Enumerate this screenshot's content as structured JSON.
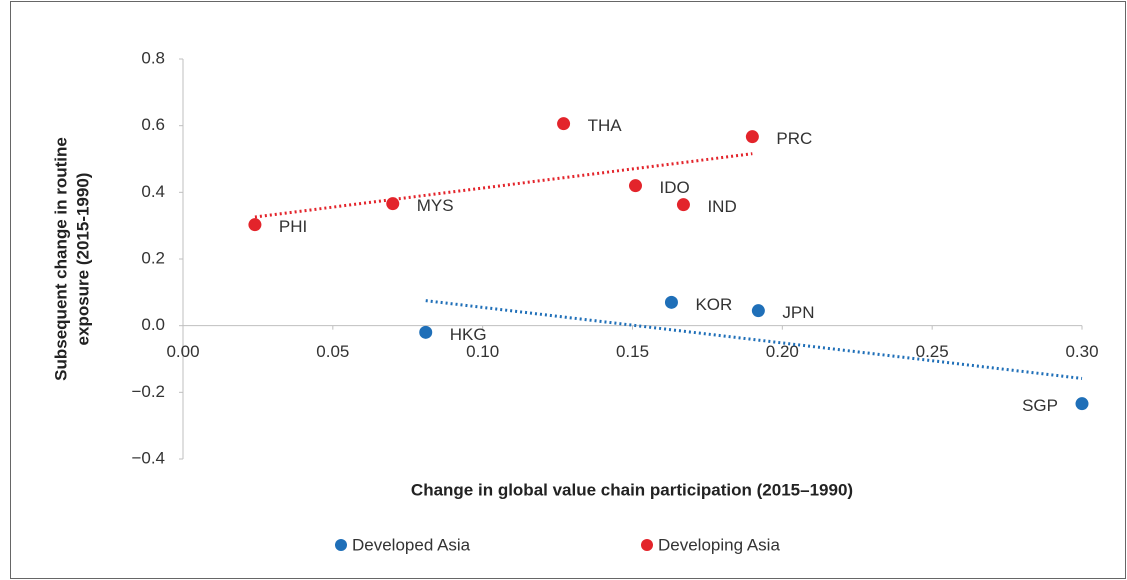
{
  "chart_data": {
    "type": "scatter",
    "xlabel": "Change in global value chain participation (2015–1990)",
    "ylabel": [
      "Subsequent change in routine",
      "exposure (2015-1990)"
    ],
    "xlim": [
      0,
      0.3
    ],
    "ylim": [
      -0.4,
      0.8
    ],
    "xticks": [
      {
        "value": 0,
        "label": "0.00"
      },
      {
        "value": 0.05,
        "label": "0.05"
      },
      {
        "value": 0.1,
        "label": "0.10"
      },
      {
        "value": 0.15,
        "label": "0.15"
      },
      {
        "value": 0.2,
        "label": "0.20"
      },
      {
        "value": 0.25,
        "label": "0.25"
      },
      {
        "value": 0.3,
        "label": "0.30"
      }
    ],
    "yticks": [
      {
        "value": -0.4,
        "label": "−0.4"
      },
      {
        "value": -0.2,
        "label": "−0.2"
      },
      {
        "value": 0,
        "label": "0.0"
      },
      0.2,
      0.4,
      0.6,
      0.8
    ],
    "grid": false,
    "trendline": true,
    "legend": "bottom",
    "series": [
      {
        "name": "Developed Asia",
        "color": "#1f6fb8",
        "labels": [
          "HKG",
          "KOR",
          "JPN",
          "SGP"
        ],
        "x": [
          0.081,
          0.163,
          0.192,
          0.3
        ],
        "values": [
          -0.02,
          0.07,
          0.045,
          -0.234
        ]
      },
      {
        "name": "Developing Asia",
        "color": "#e3242b",
        "labels": [
          "PHI",
          "MYS",
          "THA",
          "IDO",
          "IND",
          "PRC"
        ],
        "x": [
          0.024,
          0.07,
          0.127,
          0.151,
          0.167,
          0.19
        ],
        "values": [
          0.303,
          0.366,
          0.606,
          0.42,
          0.363,
          0.567
        ]
      }
    ]
  }
}
